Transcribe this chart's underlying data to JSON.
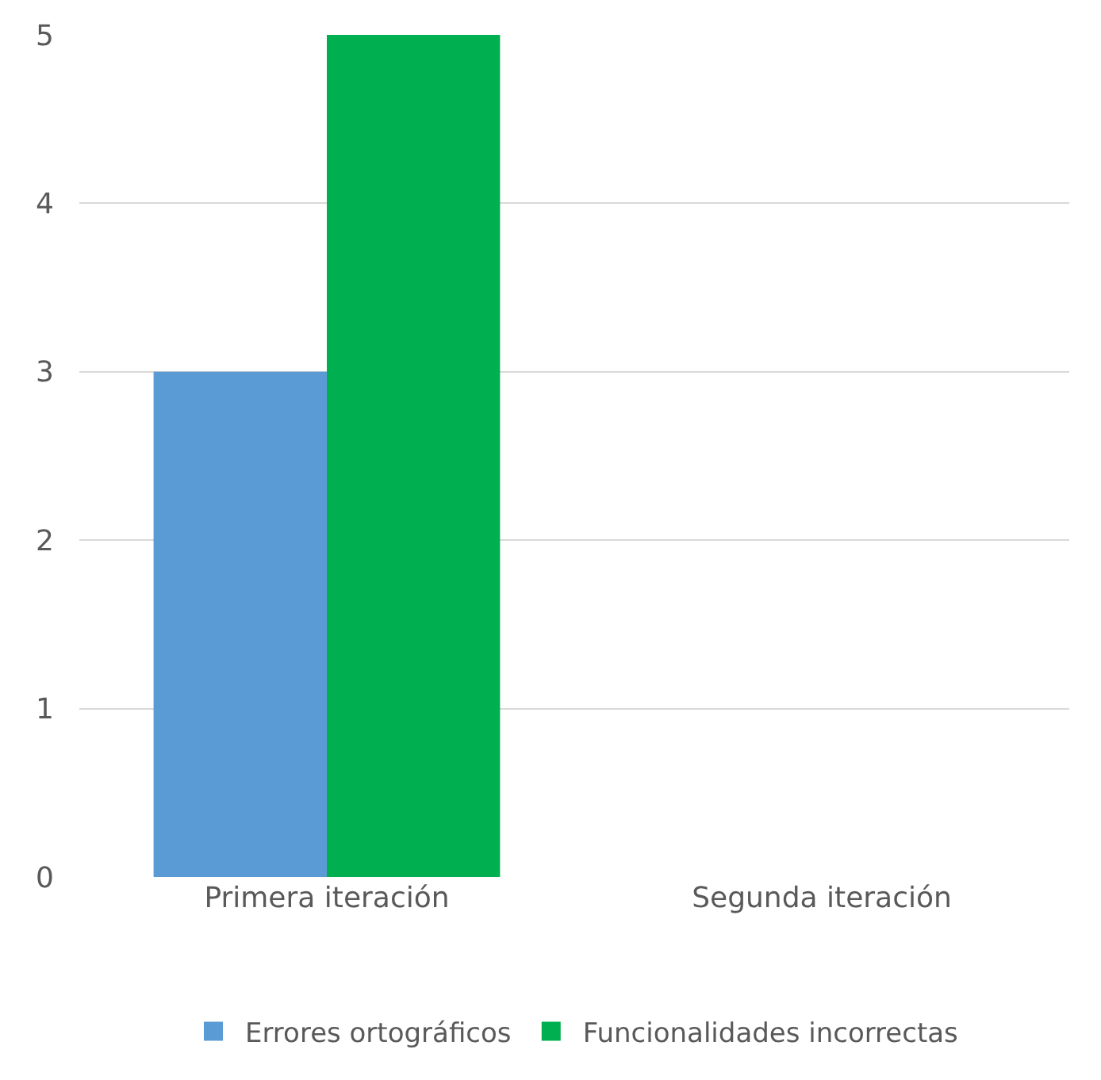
{
  "chart_data": {
    "type": "bar",
    "categories": [
      "Primera iteración",
      "Segunda iteración"
    ],
    "series": [
      {
        "name": "Errores ortográficos",
        "color": "#5b9bd5",
        "values": [
          3,
          0
        ]
      },
      {
        "name": "Funcionalidades incorrectas",
        "color": "#00b050",
        "values": [
          5,
          0
        ]
      }
    ],
    "ylim": [
      0,
      5
    ],
    "yticks": [
      0,
      1,
      2,
      3,
      4,
      5
    ],
    "grid": "y",
    "legend": "bottom"
  }
}
